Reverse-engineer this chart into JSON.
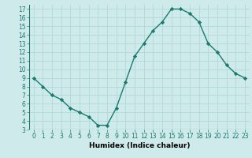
{
  "x": [
    0,
    1,
    2,
    3,
    4,
    5,
    6,
    7,
    8,
    9,
    10,
    11,
    12,
    13,
    14,
    15,
    16,
    17,
    18,
    19,
    20,
    21,
    22,
    23
  ],
  "y": [
    9,
    8,
    7,
    6.5,
    5.5,
    5,
    4.5,
    3.5,
    3.5,
    5.5,
    8.5,
    11.5,
    13,
    14.5,
    15.5,
    17,
    17,
    16.5,
    15.5,
    13,
    12,
    10.5,
    9.5,
    9
  ],
  "line_color": "#1a7a6e",
  "marker": "D",
  "markersize": 2.2,
  "linewidth": 1.0,
  "bg_color": "#ceeaea",
  "grid_color": "#b0d8d8",
  "xlabel": "Humidex (Indice chaleur)",
  "ylim": [
    3,
    17.5
  ],
  "xlim": [
    -0.5,
    23.5
  ],
  "yticks": [
    3,
    4,
    5,
    6,
    7,
    8,
    9,
    10,
    11,
    12,
    13,
    14,
    15,
    16,
    17
  ],
  "xticks": [
    0,
    1,
    2,
    3,
    4,
    5,
    6,
    7,
    8,
    9,
    10,
    11,
    12,
    13,
    14,
    15,
    16,
    17,
    18,
    19,
    20,
    21,
    22,
    23
  ],
  "tick_labelsize": 5.5,
  "xlabel_fontsize": 6.5,
  "xlabel_fontweight": "bold"
}
